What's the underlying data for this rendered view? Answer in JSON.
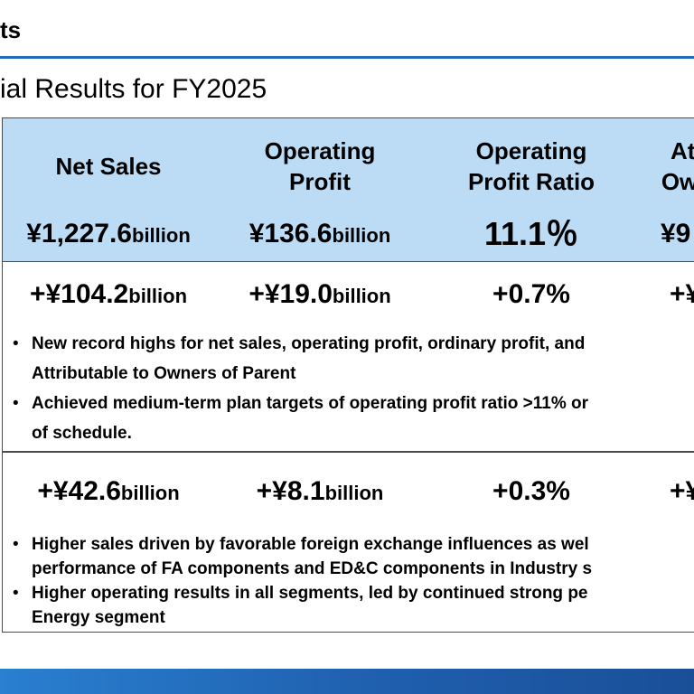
{
  "header": {
    "title": "ts"
  },
  "section": {
    "title": "ial Results for FY2025"
  },
  "table": {
    "columns": [
      {
        "label": "Net Sales",
        "value": "¥1,227.6",
        "unit": "billion"
      },
      {
        "label": "Operating\nProfit",
        "value": "¥136.6",
        "unit": "billion"
      },
      {
        "label": "Operating\nProfit Ratio",
        "value": "11.1％",
        "unit": ""
      },
      {
        "label": "Att\nOwn",
        "value": "¥9",
        "unit": ""
      }
    ],
    "rows": [
      {
        "values": [
          {
            "value": "+¥104.2",
            "unit": "billion"
          },
          {
            "value": "+¥19.0",
            "unit": "billion"
          },
          {
            "value": "+0.7%",
            "unit": ""
          },
          {
            "value": "+¥",
            "unit": ""
          }
        ],
        "bullets": [
          {
            "line1": "New record highs for net sales, operating profit, ordinary profit, and",
            "line2": "Attributable to Owners of Parent"
          },
          {
            "line1": "Achieved medium-term plan targets of operating profit ratio >11% or",
            "line2": "of schedule."
          }
        ]
      },
      {
        "values": [
          {
            "value": "+¥42.6",
            "unit": "billion"
          },
          {
            "value": "+¥8.1",
            "unit": "billion"
          },
          {
            "value": "+0.3%",
            "unit": ""
          },
          {
            "value": "+¥",
            "unit": ""
          }
        ],
        "bullets": [
          {
            "line1": "Higher sales driven by favorable foreign exchange influences as wel",
            "line2": "performance of FA components and ED&C components in Industry s"
          },
          {
            "line1": "Higher operating results in all segments, led by continued strong pe",
            "line2": "Energy segment"
          }
        ]
      }
    ]
  },
  "colors": {
    "accent": "#1f6bb5",
    "header_band": "#bcdcf5",
    "border": "#4a4a4a"
  }
}
